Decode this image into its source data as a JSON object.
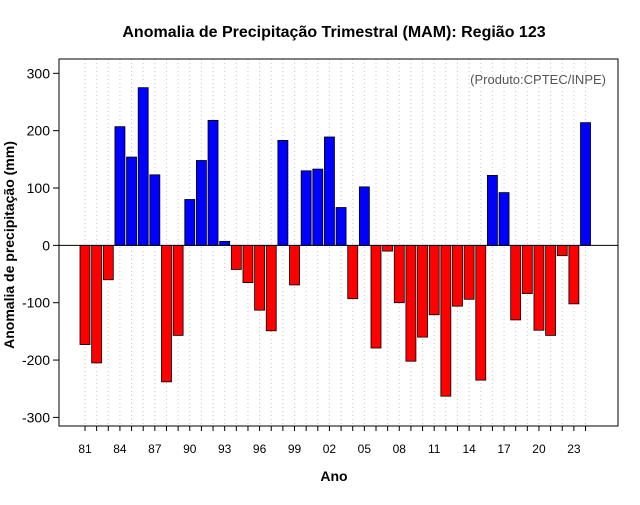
{
  "chart_data": {
    "type": "bar",
    "title": "Anomalia de Precipitação Trimestral (MAM): Região 123",
    "annotation": "(Produto:CPTEC/INPE)",
    "xlabel": "Ano",
    "ylabel": "Anomalia de precipitação (mm)",
    "ylim": [
      -315,
      325
    ],
    "yticks": [
      -300,
      -200,
      -100,
      0,
      100,
      200,
      300
    ],
    "xtick_labels": [
      "81",
      "84",
      "87",
      "90",
      "93",
      "96",
      "99",
      "02",
      "05",
      "08",
      "11",
      "14",
      "17",
      "20",
      "23"
    ],
    "grid": "vertical-dotted",
    "categories": [
      "81",
      "82",
      "83",
      "84",
      "85",
      "86",
      "87",
      "88",
      "89",
      "90",
      "91",
      "92",
      "93",
      "94",
      "95",
      "96",
      "97",
      "98",
      "99",
      "00",
      "01",
      "02",
      "03",
      "04",
      "05",
      "06",
      "07",
      "08",
      "09",
      "10",
      "11",
      "12",
      "13",
      "14",
      "15",
      "16",
      "17",
      "18",
      "19",
      "20",
      "21",
      "22",
      "23",
      "24"
    ],
    "values": [
      -173,
      -205,
      -60,
      207,
      154,
      275,
      123,
      -238,
      -157,
      80,
      148,
      218,
      7,
      -42,
      -65,
      -113,
      -149,
      183,
      -69,
      130,
      133,
      189,
      66,
      -93,
      102,
      -179,
      -10,
      -100,
      -202,
      -160,
      -121,
      -263,
      -106,
      -94,
      -235,
      122,
      92,
      -130,
      -84,
      -148,
      -157,
      -18,
      -102,
      214
    ],
    "colors": {
      "positive": "#0000ff",
      "negative": "#ff0000",
      "outline": "#000000"
    }
  }
}
